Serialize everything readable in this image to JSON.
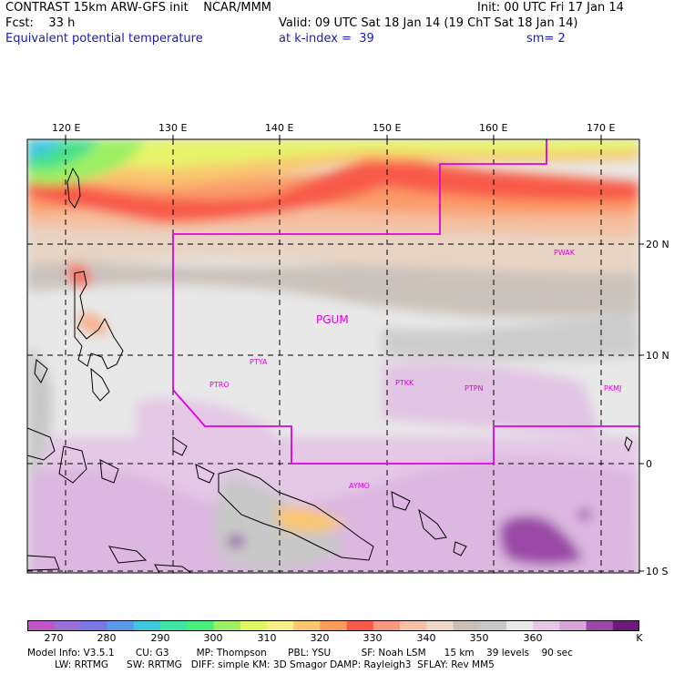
{
  "header": {
    "left_line1": "CONTRAST 15km ARW-GFS init    NCAR/MMM",
    "left_line2": "Fcst:    33 h",
    "left_line3": "Equivalent potential temperature",
    "right_line1": "Init: 00 UTC Fri 17 Jan 14",
    "right_line2": "Valid: 09 UTC Sat 18 Jan 14 (19 ChT Sat 18 Jan 14)",
    "right_line3a": "at k-index =  39",
    "right_line3b": "sm= 2"
  },
  "map": {
    "lon_labels": [
      "120 E",
      "130 E",
      "140 E",
      "150 E",
      "160 E",
      "170 E"
    ],
    "lat_labels": [
      "20 N",
      "10 N",
      "0",
      "10 S"
    ],
    "stations": [
      {
        "name": "PGUM",
        "big": true
      },
      {
        "name": "PTYA"
      },
      {
        "name": "PTRO"
      },
      {
        "name": "PTKK"
      },
      {
        "name": "PTPN"
      },
      {
        "name": "PKMJ"
      },
      {
        "name": "PWAK"
      },
      {
        "name": "AYMO"
      }
    ]
  },
  "colorbar": {
    "unit": "K",
    "labels": [
      "270",
      "280",
      "290",
      "300",
      "310",
      "320",
      "330",
      "340",
      "350",
      "360"
    ],
    "colors": [
      "#c055c8",
      "#9870d8",
      "#7a78e6",
      "#5a9ae8",
      "#3ec8e0",
      "#3ee6a6",
      "#46f07a",
      "#9cf064",
      "#e2f664",
      "#faf08a",
      "#fac66e",
      "#fa9c5a",
      "#fa5a4a",
      "#f89a80",
      "#f8c0a6",
      "#f0d6c6",
      "#cac0b8",
      "#c8c8c8",
      "#e8e8e8",
      "#e8c6e6",
      "#d8a6d8",
      "#9a4aa6",
      "#6c1a7c"
    ]
  },
  "model_info": {
    "line1": "Model Info: V3.5.1       CU: G3         MP: Thompson       PBL: YSU          SF: Noah LSM      15 km    39 levels    90 sec",
    "line2": "         LW: RRTMG      SW: RRTMG   DIFF: simple KM: 3D Smagor DAMP: Rayleigh3  SFLAY: Rev MM5"
  }
}
